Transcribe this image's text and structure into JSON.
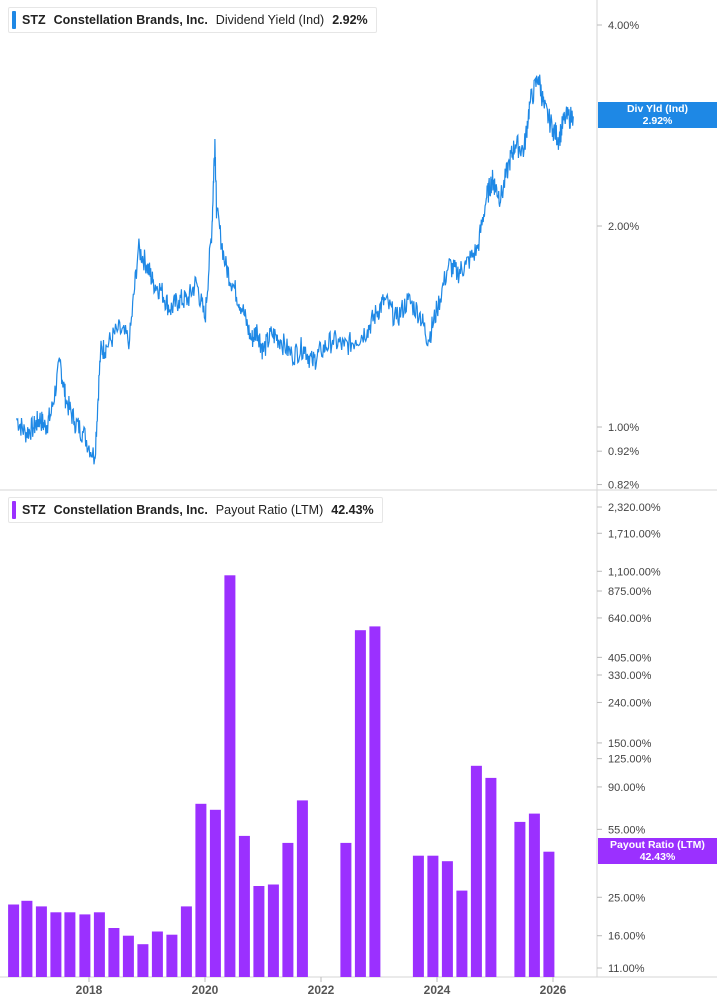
{
  "top_panel": {
    "legend": {
      "ticker": "STZ",
      "company": "Constellation Brands, Inc.",
      "metric": "Dividend Yield (Ind)",
      "value": "2.92%"
    },
    "tag": {
      "label": "Div Yld (Ind)",
      "value": "2.92%"
    },
    "color": "#1e88e5"
  },
  "bottom_panel": {
    "legend": {
      "ticker": "STZ",
      "company": "Constellation Brands, Inc.",
      "metric": "Payout Ratio (LTM)",
      "value": "42.43%"
    },
    "tag": {
      "label": "Payout Ratio (LTM)",
      "value": "42.43%"
    },
    "color": "#9b30ff"
  },
  "chart_data": [
    {
      "type": "line",
      "title": "STZ Constellation Brands, Inc. Dividend Yield (Ind) 2.92%",
      "y_scale": "log",
      "y_unit": "%",
      "ylim": [
        0.82,
        5.0
      ],
      "y_ticks": [
        "4.00%",
        "2.00%",
        "1.00%",
        "0.92%",
        "0.82%"
      ],
      "y_tick_values": [
        4.0,
        2.0,
        1.0,
        0.92,
        0.82
      ],
      "x_ticks": [
        "2018",
        "2020",
        "2022",
        "2024",
        "2026"
      ],
      "grid": false,
      "series": [
        {
          "name": "Dividend Yield (Ind)",
          "x": [
            2016.75,
            2016.9,
            2017.05,
            2017.15,
            2017.25,
            2017.35,
            2017.5,
            2017.6,
            2017.75,
            2017.9,
            2018.1,
            2018.2,
            2018.3,
            2018.5,
            2018.7,
            2018.85,
            2019.0,
            2019.1,
            2019.25,
            2019.4,
            2019.55,
            2019.7,
            2019.85,
            2020.0,
            2020.12,
            2020.17,
            2020.2,
            2020.35,
            2020.5,
            2020.65,
            2020.8,
            2020.9,
            2021.0,
            2021.15,
            2021.3,
            2021.5,
            2021.7,
            2021.85,
            2022.0,
            2022.2,
            2022.4,
            2022.6,
            2022.8,
            2022.95,
            2023.1,
            2023.3,
            2023.5,
            2023.7,
            2023.85,
            2024.0,
            2024.2,
            2024.35,
            2024.5,
            2024.7,
            2024.85,
            2024.95,
            2025.0,
            2025.1,
            2025.25,
            2025.35,
            2025.5,
            2025.6,
            2025.75,
            2025.85,
            2026.0,
            2026.1,
            2026.2,
            2026.35
          ],
          "values": [
            1.03,
            0.98,
            1.0,
            1.03,
            1.0,
            1.05,
            1.25,
            1.1,
            1.02,
            0.98,
            0.9,
            1.3,
            1.32,
            1.4,
            1.35,
            1.85,
            1.75,
            1.65,
            1.6,
            1.5,
            1.55,
            1.55,
            1.65,
            1.45,
            2.0,
            2.7,
            2.1,
            1.75,
            1.62,
            1.5,
            1.35,
            1.4,
            1.3,
            1.38,
            1.35,
            1.28,
            1.32,
            1.25,
            1.3,
            1.35,
            1.32,
            1.35,
            1.4,
            1.48,
            1.55,
            1.45,
            1.55,
            1.48,
            1.35,
            1.5,
            1.75,
            1.7,
            1.75,
            1.85,
            2.2,
            2.35,
            2.3,
            2.2,
            2.5,
            2.65,
            2.6,
            3.05,
            3.35,
            3.0,
            2.8,
            2.7,
            2.9,
            2.92
          ]
        }
      ]
    },
    {
      "type": "bar",
      "title": "STZ Constellation Brands, Inc. Payout Ratio (LTM) 42.43%",
      "y_scale": "log",
      "y_unit": "%",
      "ylim": [
        10.0,
        2600.0
      ],
      "y_ticks": [
        "2,320.00%",
        "1,710.00%",
        "1,100.00%",
        "875.00%",
        "640.00%",
        "405.00%",
        "330.00%",
        "240.00%",
        "150.00%",
        "125.00%",
        "90.00%",
        "55.00%",
        "25.00%",
        "16.00%",
        "11.00%"
      ],
      "y_tick_values": [
        2320,
        1710,
        1100,
        875,
        640,
        405,
        330,
        240,
        150,
        125,
        90,
        55,
        25,
        16,
        11
      ],
      "x_ticks": [
        "2018",
        "2020",
        "2022",
        "2024",
        "2026"
      ],
      "grid": false,
      "series": [
        {
          "name": "Payout Ratio (LTM)",
          "x": [
            2016.7,
            2016.93,
            2017.18,
            2017.43,
            2017.67,
            2017.93,
            2018.18,
            2018.43,
            2018.68,
            2018.93,
            2019.18,
            2019.43,
            2019.68,
            2019.93,
            2020.18,
            2020.43,
            2020.68,
            2020.93,
            2021.18,
            2021.43,
            2021.68,
            2021.93,
            2022.18,
            2022.43,
            2022.68,
            2022.93,
            2023.18,
            2023.43,
            2023.68,
            2023.93,
            2024.18,
            2024.43,
            2024.68,
            2024.93,
            2025.18,
            2025.43,
            2025.68,
            2025.93,
            2026.18
          ],
          "values": [
            23.0,
            24.0,
            22.5,
            21.0,
            21.0,
            20.5,
            21.0,
            17.5,
            16.0,
            14.5,
            16.8,
            16.2,
            22.5,
            74.0,
            69.0,
            1050.0,
            51.0,
            28.5,
            29.0,
            47.0,
            77.0,
            null,
            null,
            47.0,
            555.0,
            580.0,
            null,
            null,
            40.5,
            40.5,
            38.0,
            27.0,
            115.0,
            100.0,
            null,
            60.0,
            66.0,
            42.43,
            null
          ]
        }
      ]
    }
  ]
}
